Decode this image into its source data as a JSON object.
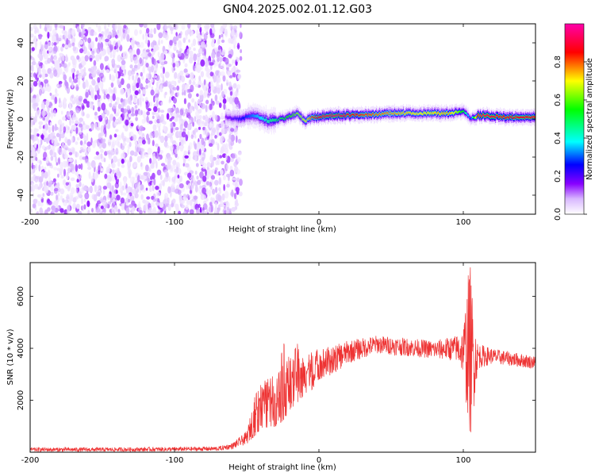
{
  "figure": {
    "title": "GN04.2025.002.01.12.G03"
  },
  "chart_data": [
    {
      "type": "heatmap",
      "title": "GN04.2025.002.01.12.G03",
      "xlabel": "Height of straight line (km)",
      "ylabel": "Frequency (Hz)",
      "xlim": [
        -200,
        150
      ],
      "ylim": [
        -50,
        50
      ],
      "x_ticks": [
        -200,
        -100,
        0,
        100
      ],
      "y_ticks": [
        -40,
        -20,
        0,
        20,
        40
      ],
      "grid": false,
      "noise_region": {
        "x_from": -200,
        "x_to": -58,
        "y_from": -50,
        "y_to": 50
      },
      "carrier_band": {
        "x": [
          -65,
          -55,
          -45,
          -35,
          -25,
          -15,
          -10,
          -5,
          0,
          10,
          30,
          50,
          70,
          90,
          100,
          105,
          110,
          130,
          150
        ],
        "freq": [
          1,
          0,
          2,
          -1,
          0,
          3,
          -1,
          1,
          1,
          2,
          2,
          3,
          3,
          3,
          4,
          0,
          2,
          1,
          1
        ],
        "amplitude": [
          0.25,
          0.35,
          0.45,
          0.55,
          0.6,
          0.7,
          0.75,
          0.85,
          0.9,
          0.95,
          0.85,
          0.8,
          0.75,
          0.8,
          0.6,
          0.4,
          0.95,
          0.9,
          0.9
        ]
      },
      "colorbar": {
        "label": "Normalized spectral amplitude",
        "range": [
          0,
          1
        ],
        "ticks": [
          "0.0",
          "0.2",
          "0.4",
          "0.6",
          "0.8"
        ],
        "colors": [
          "#ffffff",
          "#d9b8ff",
          "#8800ff",
          "#0000ff",
          "#00ffff",
          "#00ff00",
          "#ffff00",
          "#ff0000",
          "#ff00aa"
        ]
      }
    },
    {
      "type": "line",
      "xlabel": "Height of straight line (km)",
      "ylabel": "SNR (10 * v/v)",
      "xlim": [
        -200,
        150
      ],
      "ylim": [
        0,
        7300
      ],
      "x_ticks": [
        -200,
        -100,
        0,
        100
      ],
      "y_ticks": [
        2000,
        4000,
        6000
      ],
      "grid": false,
      "color": "#ee3333",
      "envelope": {
        "x": [
          -200,
          -150,
          -100,
          -70,
          -60,
          -50,
          -43,
          -40,
          -30,
          -25,
          -20,
          -15,
          -10,
          -5,
          0,
          10,
          20,
          30,
          40,
          60,
          80,
          95,
          100,
          103,
          105,
          107,
          110,
          120,
          150
        ],
        "low": [
          20,
          20,
          30,
          50,
          120,
          300,
          700,
          900,
          1000,
          1200,
          1600,
          1800,
          2000,
          2400,
          2800,
          3000,
          3400,
          3600,
          3800,
          3700,
          3600,
          3500,
          3000,
          1200,
          500,
          1500,
          3200,
          3400,
          3200
        ],
        "high": [
          180,
          180,
          200,
          220,
          350,
          800,
          2500,
          2700,
          3000,
          4300,
          3600,
          4200,
          3600,
          3900,
          4000,
          4100,
          4300,
          4400,
          4500,
          4400,
          4300,
          4500,
          4800,
          6800,
          7300,
          5500,
          4200,
          4000,
          3700
        ]
      }
    }
  ]
}
